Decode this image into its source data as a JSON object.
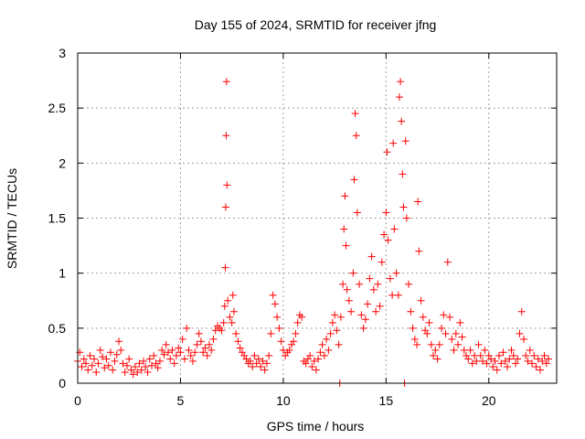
{
  "chart_data": {
    "type": "scatter",
    "title": "Day 155 of 2024, SRMTID for receiver jfng",
    "xlabel": "GPS time / hours",
    "ylabel": "SRMTID / TECUs",
    "xlim": [
      0,
      23.3
    ],
    "ylim": [
      0,
      3
    ],
    "xticks": [
      0,
      5,
      10,
      15,
      20
    ],
    "xtick_labels": [
      "0",
      "5",
      "10",
      "15",
      "20"
    ],
    "yticks": [
      0,
      0.5,
      1,
      1.5,
      2,
      2.5,
      3
    ],
    "ytick_labels": [
      "0",
      "0.5",
      "1",
      "1.5",
      "2",
      "2.5",
      "3"
    ],
    "grid": true,
    "marker": "+",
    "color": "#ff0000",
    "series": [
      {
        "name": "SRMTID",
        "points": [
          [
            0.0,
            0.2
          ],
          [
            0.1,
            0.28
          ],
          [
            0.2,
            0.15
          ],
          [
            0.3,
            0.22
          ],
          [
            0.4,
            0.18
          ],
          [
            0.5,
            0.12
          ],
          [
            0.6,
            0.25
          ],
          [
            0.7,
            0.16
          ],
          [
            0.8,
            0.22
          ],
          [
            0.9,
            0.1
          ],
          [
            1.0,
            0.18
          ],
          [
            1.1,
            0.3
          ],
          [
            1.2,
            0.24
          ],
          [
            1.3,
            0.14
          ],
          [
            1.4,
            0.22
          ],
          [
            1.5,
            0.16
          ],
          [
            1.6,
            0.28
          ],
          [
            1.7,
            0.12
          ],
          [
            1.8,
            0.2
          ],
          [
            1.9,
            0.26
          ],
          [
            2.0,
            0.38
          ],
          [
            2.1,
            0.3
          ],
          [
            2.2,
            0.18
          ],
          [
            2.3,
            0.1
          ],
          [
            2.4,
            0.16
          ],
          [
            2.5,
            0.22
          ],
          [
            2.6,
            0.12
          ],
          [
            2.7,
            0.08
          ],
          [
            2.8,
            0.15
          ],
          [
            2.9,
            0.1
          ],
          [
            3.0,
            0.18
          ],
          [
            3.1,
            0.12
          ],
          [
            3.2,
            0.2
          ],
          [
            3.3,
            0.15
          ],
          [
            3.4,
            0.1
          ],
          [
            3.5,
            0.22
          ],
          [
            3.6,
            0.16
          ],
          [
            3.7,
            0.25
          ],
          [
            3.8,
            0.18
          ],
          [
            3.9,
            0.14
          ],
          [
            4.0,
            0.2
          ],
          [
            4.1,
            0.3
          ],
          [
            4.2,
            0.26
          ],
          [
            4.3,
            0.35
          ],
          [
            4.4,
            0.28
          ],
          [
            4.5,
            0.22
          ],
          [
            4.6,
            0.3
          ],
          [
            4.7,
            0.18
          ],
          [
            4.8,
            0.25
          ],
          [
            4.9,
            0.32
          ],
          [
            5.0,
            0.28
          ],
          [
            5.1,
            0.4
          ],
          [
            5.2,
            0.22
          ],
          [
            5.3,
            0.5
          ],
          [
            5.4,
            0.3
          ],
          [
            5.5,
            0.25
          ],
          [
            5.6,
            0.2
          ],
          [
            5.7,
            0.28
          ],
          [
            5.8,
            0.35
          ],
          [
            5.9,
            0.45
          ],
          [
            6.0,
            0.38
          ],
          [
            6.1,
            0.28
          ],
          [
            6.2,
            0.32
          ],
          [
            6.3,
            0.25
          ],
          [
            6.4,
            0.35
          ],
          [
            6.5,
            0.3
          ],
          [
            6.6,
            0.4
          ],
          [
            6.7,
            0.48
          ],
          [
            6.8,
            0.52
          ],
          [
            6.9,
            0.5
          ],
          [
            7.0,
            0.48
          ],
          [
            7.1,
            0.55
          ],
          [
            7.15,
            0.7
          ],
          [
            7.18,
            1.05
          ],
          [
            7.2,
            1.6
          ],
          [
            7.22,
            2.25
          ],
          [
            7.24,
            2.74
          ],
          [
            7.26,
            1.8
          ],
          [
            7.3,
            0.75
          ],
          [
            7.4,
            0.6
          ],
          [
            7.5,
            0.55
          ],
          [
            7.55,
            0.8
          ],
          [
            7.6,
            0.65
          ],
          [
            7.7,
            0.45
          ],
          [
            7.8,
            0.38
          ],
          [
            7.9,
            0.32
          ],
          [
            8.0,
            0.28
          ],
          [
            8.1,
            0.25
          ],
          [
            8.2,
            0.22
          ],
          [
            8.3,
            0.18
          ],
          [
            8.4,
            0.2
          ],
          [
            8.5,
            0.15
          ],
          [
            8.6,
            0.25
          ],
          [
            8.7,
            0.18
          ],
          [
            8.8,
            0.22
          ],
          [
            8.9,
            0.15
          ],
          [
            9.0,
            0.2
          ],
          [
            9.1,
            0.12
          ],
          [
            9.2,
            0.18
          ],
          [
            9.3,
            0.25
          ],
          [
            9.4,
            0.45
          ],
          [
            9.5,
            0.8
          ],
          [
            9.6,
            0.72
          ],
          [
            9.7,
            0.6
          ],
          [
            9.8,
            0.5
          ],
          [
            9.9,
            0.38
          ],
          [
            10.0,
            0.3
          ],
          [
            10.1,
            0.25
          ],
          [
            10.2,
            0.28
          ],
          [
            10.3,
            0.3
          ],
          [
            10.4,
            0.35
          ],
          [
            10.5,
            0.38
          ],
          [
            10.6,
            0.45
          ],
          [
            10.7,
            0.55
          ],
          [
            10.8,
            0.62
          ],
          [
            10.9,
            0.6
          ],
          [
            11.0,
            0.2
          ],
          [
            11.1,
            0.18
          ],
          [
            11.2,
            0.22
          ],
          [
            11.3,
            0.25
          ],
          [
            11.4,
            0.15
          ],
          [
            11.5,
            0.2
          ],
          [
            11.6,
            0.12
          ],
          [
            11.7,
            0.22
          ],
          [
            11.8,
            0.28
          ],
          [
            11.9,
            0.35
          ],
          [
            12.0,
            0.25
          ],
          [
            12.1,
            0.4
          ],
          [
            12.2,
            0.3
          ],
          [
            12.3,
            0.45
          ],
          [
            12.4,
            0.55
          ],
          [
            12.5,
            0.62
          ],
          [
            12.6,
            0.48
          ],
          [
            12.7,
            0.35
          ],
          [
            12.75,
            0.0
          ],
          [
            12.8,
            0.6
          ],
          [
            12.9,
            0.9
          ],
          [
            12.95,
            1.4
          ],
          [
            13.0,
            1.7
          ],
          [
            13.05,
            1.25
          ],
          [
            13.1,
            0.85
          ],
          [
            13.2,
            0.75
          ],
          [
            13.3,
            0.65
          ],
          [
            13.4,
            1.0
          ],
          [
            13.45,
            1.85
          ],
          [
            13.5,
            2.45
          ],
          [
            13.55,
            2.25
          ],
          [
            13.6,
            1.55
          ],
          [
            13.7,
            0.9
          ],
          [
            13.8,
            0.62
          ],
          [
            13.9,
            0.5
          ],
          [
            14.0,
            0.58
          ],
          [
            14.1,
            0.72
          ],
          [
            14.2,
            0.95
          ],
          [
            14.3,
            1.15
          ],
          [
            14.4,
            0.85
          ],
          [
            14.5,
            0.65
          ],
          [
            14.6,
            0.9
          ],
          [
            14.7,
            0.7
          ],
          [
            14.8,
            1.1
          ],
          [
            14.9,
            1.35
          ],
          [
            15.0,
            1.55
          ],
          [
            15.05,
            2.1
          ],
          [
            15.1,
            1.3
          ],
          [
            15.2,
            0.95
          ],
          [
            15.3,
            0.8
          ],
          [
            15.35,
            2.18
          ],
          [
            15.4,
            1.4
          ],
          [
            15.5,
            1.0
          ],
          [
            15.6,
            0.8
          ],
          [
            15.65,
            2.6
          ],
          [
            15.7,
            2.74
          ],
          [
            15.75,
            2.38
          ],
          [
            15.8,
            1.9
          ],
          [
            15.85,
            1.6
          ],
          [
            15.9,
            0.0
          ],
          [
            15.95,
            2.2
          ],
          [
            16.0,
            1.5
          ],
          [
            16.1,
            0.9
          ],
          [
            16.2,
            0.65
          ],
          [
            16.3,
            0.5
          ],
          [
            16.4,
            0.4
          ],
          [
            16.5,
            0.35
          ],
          [
            16.55,
            1.65
          ],
          [
            16.6,
            1.2
          ],
          [
            16.7,
            0.75
          ],
          [
            16.8,
            0.6
          ],
          [
            16.9,
            0.48
          ],
          [
            17.0,
            0.45
          ],
          [
            17.1,
            0.55
          ],
          [
            17.2,
            0.35
          ],
          [
            17.3,
            0.25
          ],
          [
            17.4,
            0.3
          ],
          [
            17.5,
            0.22
          ],
          [
            17.6,
            0.35
          ],
          [
            17.7,
            0.5
          ],
          [
            17.8,
            0.62
          ],
          [
            17.9,
            0.45
          ],
          [
            18.0,
            1.1
          ],
          [
            18.1,
            0.6
          ],
          [
            18.2,
            0.4
          ],
          [
            18.3,
            0.3
          ],
          [
            18.4,
            0.45
          ],
          [
            18.5,
            0.35
          ],
          [
            18.6,
            0.55
          ],
          [
            18.7,
            0.42
          ],
          [
            18.8,
            0.3
          ],
          [
            18.9,
            0.25
          ],
          [
            19.0,
            0.22
          ],
          [
            19.1,
            0.3
          ],
          [
            19.2,
            0.18
          ],
          [
            19.3,
            0.25
          ],
          [
            19.4,
            0.2
          ],
          [
            19.5,
            0.35
          ],
          [
            19.6,
            0.25
          ],
          [
            19.7,
            0.2
          ],
          [
            19.8,
            0.3
          ],
          [
            19.9,
            0.18
          ],
          [
            20.0,
            0.25
          ],
          [
            20.1,
            0.22
          ],
          [
            20.2,
            0.15
          ],
          [
            20.3,
            0.2
          ],
          [
            20.4,
            0.12
          ],
          [
            20.5,
            0.25
          ],
          [
            20.6,
            0.18
          ],
          [
            20.7,
            0.28
          ],
          [
            20.8,
            0.2
          ],
          [
            20.9,
            0.15
          ],
          [
            21.0,
            0.22
          ],
          [
            21.1,
            0.3
          ],
          [
            21.2,
            0.25
          ],
          [
            21.3,
            0.18
          ],
          [
            21.4,
            0.22
          ],
          [
            21.5,
            0.45
          ],
          [
            21.6,
            0.65
          ],
          [
            21.7,
            0.4
          ],
          [
            21.8,
            0.25
          ],
          [
            21.9,
            0.2
          ],
          [
            22.0,
            0.3
          ],
          [
            22.1,
            0.18
          ],
          [
            22.2,
            0.25
          ],
          [
            22.3,
            0.15
          ],
          [
            22.4,
            0.22
          ],
          [
            22.5,
            0.12
          ],
          [
            22.6,
            0.2
          ],
          [
            22.7,
            0.25
          ],
          [
            22.8,
            0.18
          ],
          [
            22.9,
            0.22
          ]
        ]
      }
    ]
  }
}
